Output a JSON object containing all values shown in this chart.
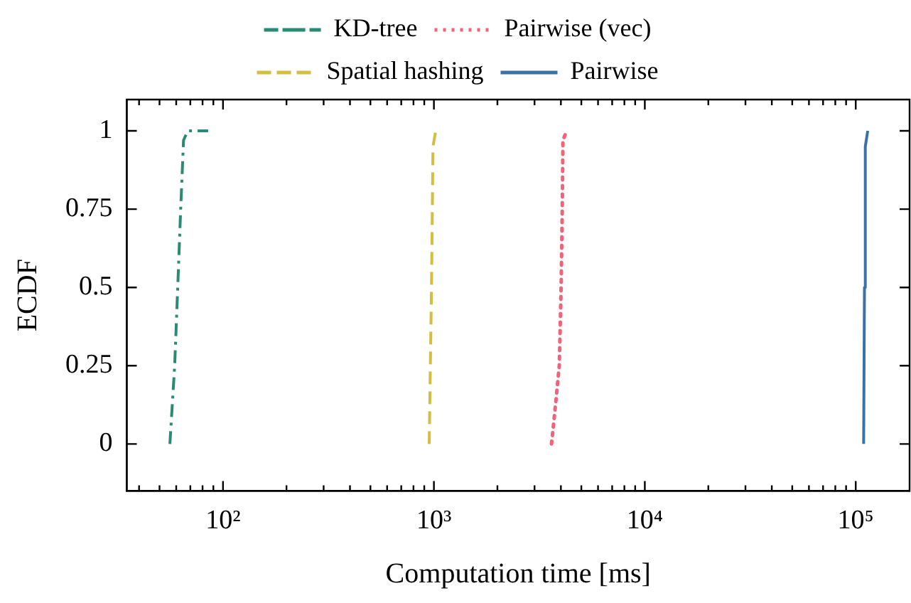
{
  "chart_data": {
    "type": "line",
    "xlabel": "Computation time [ms]",
    "ylabel": "ECDF",
    "log": "x",
    "legend": "top",
    "grid": false,
    "marker": "none",
    "xlim": [
      35,
      180000
    ],
    "ylim": [
      -0.15,
      1.1
    ],
    "xticks": [
      {
        "value": 40,
        "label": null
      },
      {
        "value": 50,
        "label": null
      },
      {
        "value": 60,
        "label": null
      },
      {
        "value": 70,
        "label": null
      },
      {
        "value": 80,
        "label": null
      },
      {
        "value": 90,
        "label": null
      },
      {
        "value": 100,
        "label": "10²"
      },
      {
        "value": 200,
        "label": null
      },
      {
        "value": 300,
        "label": null
      },
      {
        "value": 400,
        "label": null
      },
      {
        "value": 500,
        "label": null
      },
      {
        "value": 600,
        "label": null
      },
      {
        "value": 700,
        "label": null
      },
      {
        "value": 800,
        "label": null
      },
      {
        "value": 900,
        "label": null
      },
      {
        "value": 1000,
        "label": "10³"
      },
      {
        "value": 2000,
        "label": null
      },
      {
        "value": 3000,
        "label": null
      },
      {
        "value": 4000,
        "label": null
      },
      {
        "value": 5000,
        "label": null
      },
      {
        "value": 6000,
        "label": null
      },
      {
        "value": 7000,
        "label": null
      },
      {
        "value": 8000,
        "label": null
      },
      {
        "value": 9000,
        "label": null
      },
      {
        "value": 10000,
        "label": "10⁴"
      },
      {
        "value": 20000,
        "label": null
      },
      {
        "value": 30000,
        "label": null
      },
      {
        "value": 40000,
        "label": null
      },
      {
        "value": 50000,
        "label": null
      },
      {
        "value": 60000,
        "label": null
      },
      {
        "value": 70000,
        "label": null
      },
      {
        "value": 80000,
        "label": null
      },
      {
        "value": 90000,
        "label": null
      },
      {
        "value": 100000,
        "label": "10⁵"
      }
    ],
    "yticks": [
      0,
      0.25,
      0.5,
      0.75,
      1
    ],
    "series": [
      {
        "name": "KD-tree",
        "color": "#2a8a74",
        "line_style": "dashdot",
        "x": [
          56,
          59,
          61,
          63,
          65,
          68,
          85
        ],
        "values": [
          0,
          0.25,
          0.5,
          0.75,
          0.97,
          1,
          1
        ]
      },
      {
        "name": "Pairwise (vec)",
        "color": "#f0647a",
        "line_style": "dotted",
        "x": [
          3610,
          3740,
          3930,
          4010,
          4060,
          4090,
          4260
        ],
        "values": [
          0,
          0.1,
          0.25,
          0.5,
          0.75,
          0.97,
          1
        ]
      },
      {
        "name": "Spatial hashing",
        "color": "#d4bd3f",
        "line_style": "dashed",
        "x": [
          950,
          974,
          990,
          1020
        ],
        "values": [
          0,
          0.5,
          0.95,
          1
        ]
      },
      {
        "name": "Pairwise",
        "color": "#3a72a8",
        "line_style": "solid",
        "x": [
          109000,
          110000,
          111000,
          114000
        ],
        "values": [
          0,
          0.5,
          0.95,
          1
        ]
      }
    ]
  }
}
